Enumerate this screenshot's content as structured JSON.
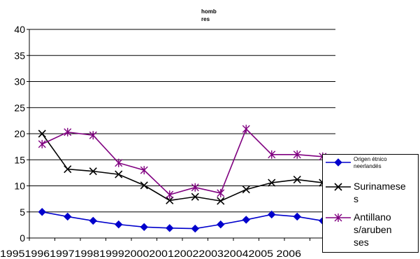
{
  "chart_data": {
    "type": "line",
    "title_lines": [
      "homb",
      "res"
    ],
    "xlabel": "",
    "ylabel": "",
    "x_tick_text": "19951996199719981999200020012002200320042005 2006",
    "categories": [
      "1995",
      "1996",
      "1997",
      "1998",
      "1999",
      "2000",
      "2001",
      "2002",
      "2003",
      "2004",
      "2005",
      "2006"
    ],
    "y_ticks": [
      "0",
      "5",
      "10",
      "15",
      "20",
      "25",
      "30",
      "35",
      "40"
    ],
    "ylim": [
      0,
      40
    ],
    "grid": true,
    "legend_position": "right",
    "series": [
      {
        "name": "Origen étnico neerlandés",
        "legend_lines": [
          "Origen étnico",
          "neerlandés"
        ],
        "color": "#0000cc",
        "marker": "diamond",
        "values": [
          5.0,
          4.1,
          3.3,
          2.6,
          2.1,
          1.9,
          1.8,
          2.6,
          3.5,
          4.5,
          4.1,
          3.3
        ]
      },
      {
        "name": "Surinameses",
        "legend_lines": [
          "Surinamese",
          "s"
        ],
        "color": "#000000",
        "marker": "x",
        "values": [
          20.0,
          13.2,
          12.8,
          12.2,
          10.1,
          7.2,
          7.9,
          7.1,
          9.3,
          10.6,
          11.2,
          10.6
        ]
      },
      {
        "name": "Antillanos/arubenses",
        "legend_lines": [
          "Antillano",
          "s/aruben",
          "ses"
        ],
        "color": "#800080",
        "marker": "star",
        "values": [
          18.0,
          20.3,
          19.7,
          14.4,
          13.0,
          8.3,
          9.7,
          8.6,
          20.9,
          16.0,
          16.0,
          15.6
        ]
      }
    ]
  }
}
